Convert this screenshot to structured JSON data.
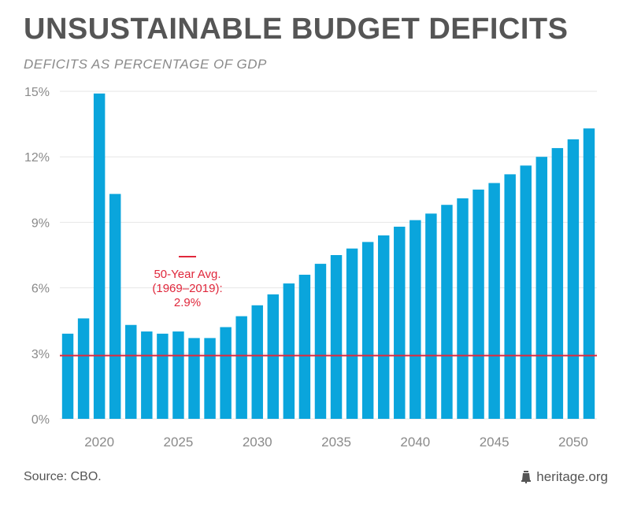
{
  "header": {
    "title": "UNSUSTAINABLE BUDGET DEFICITS",
    "subtitle": "DEFICITS AS PERCENTAGE OF GDP"
  },
  "footer": {
    "source": "Source: CBO.",
    "brand": "heritage.org",
    "brand_icon": "liberty-bell-icon"
  },
  "colors": {
    "bar": "#0aa5dc",
    "reference_line": "#e0283c",
    "annotation": "#e0283c",
    "grid": "#e6e6e6",
    "axis_text": "#8a8a8a"
  },
  "chart_data": {
    "type": "bar",
    "title": "UNSUSTAINABLE BUDGET DEFICITS",
    "subtitle": "DEFICITS AS PERCENTAGE OF GDP",
    "xlabel": "",
    "ylabel": "",
    "ylim": [
      0,
      15
    ],
    "yticks": [
      0,
      3,
      6,
      9,
      12,
      15
    ],
    "ytick_labels": [
      "0%",
      "3%",
      "6%",
      "9%",
      "12%",
      "15%"
    ],
    "xticks": [
      2020,
      2025,
      2030,
      2035,
      2040,
      2045,
      2050
    ],
    "xtick_labels": [
      "2020",
      "2025",
      "2030",
      "2035",
      "2040",
      "2045",
      "2050"
    ],
    "grid": true,
    "categories": [
      2018,
      2019,
      2020,
      2021,
      2022,
      2023,
      2024,
      2025,
      2026,
      2027,
      2028,
      2029,
      2030,
      2031,
      2032,
      2033,
      2034,
      2035,
      2036,
      2037,
      2038,
      2039,
      2040,
      2041,
      2042,
      2043,
      2044,
      2045,
      2046,
      2047,
      2048,
      2049,
      2050,
      2051
    ],
    "values": [
      3.9,
      4.6,
      14.9,
      10.3,
      4.3,
      4.0,
      3.9,
      4.0,
      3.7,
      3.7,
      4.2,
      4.7,
      5.2,
      5.7,
      6.2,
      6.6,
      7.1,
      7.5,
      7.8,
      8.1,
      8.4,
      8.8,
      9.1,
      9.4,
      9.8,
      10.1,
      10.5,
      10.8,
      11.2,
      11.6,
      12.0,
      12.4,
      12.8,
      13.3
    ],
    "reference_line": {
      "value": 2.9,
      "label_lines": [
        "50-Year Avg.",
        "(1969–2019):",
        "2.9%"
      ]
    }
  }
}
